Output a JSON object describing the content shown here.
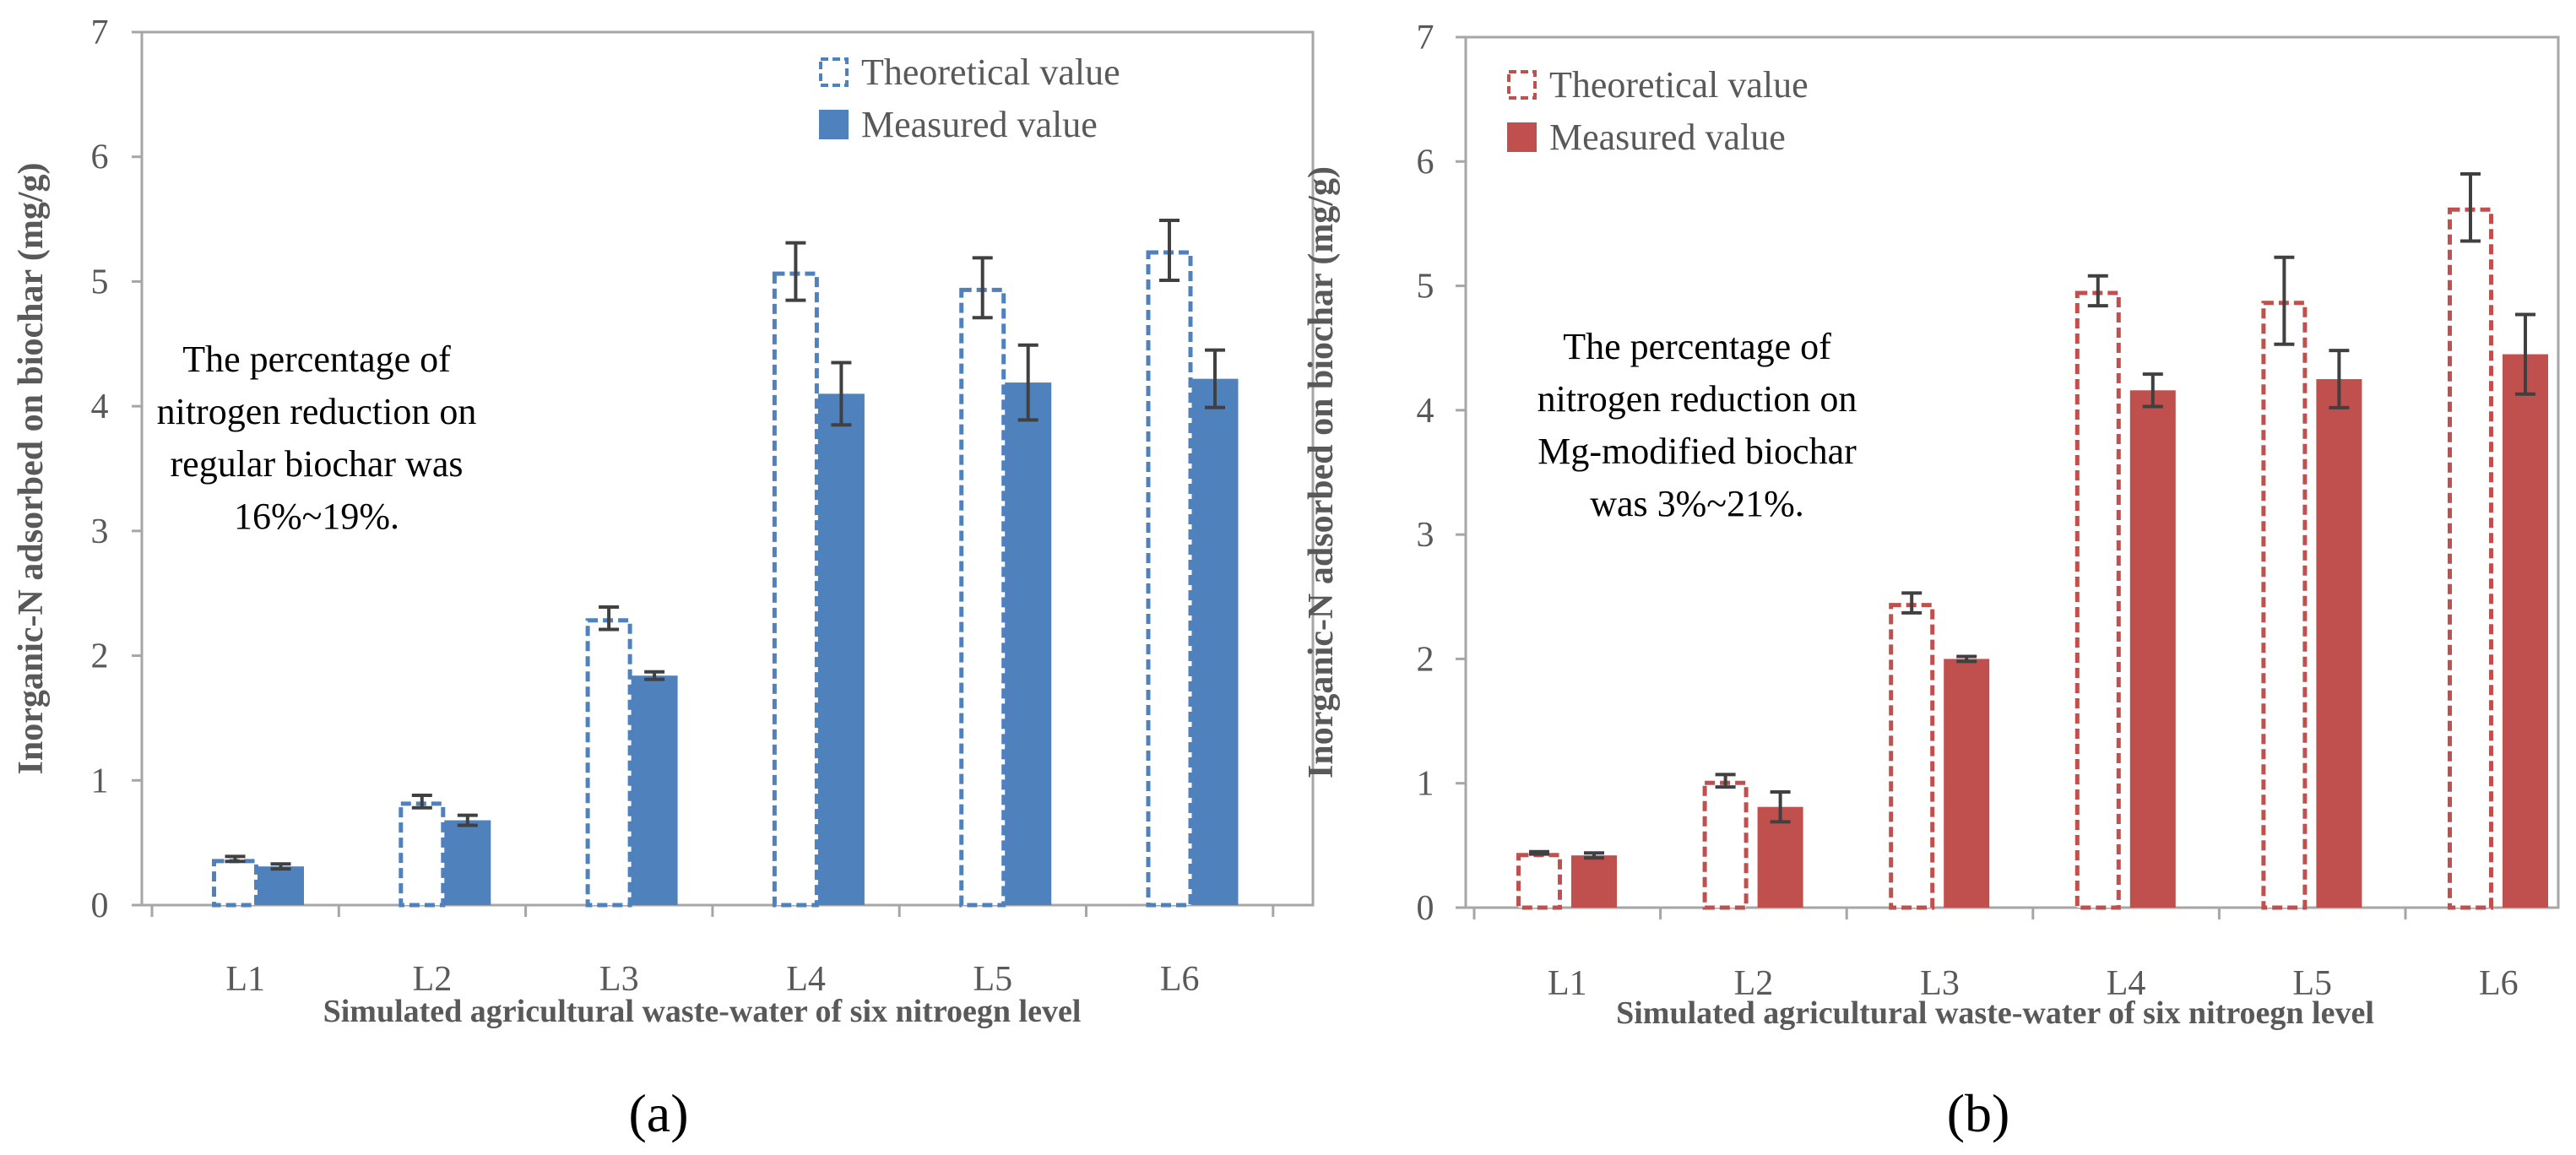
{
  "chart_data": [
    {
      "type": "bar",
      "panel_label": "(a)",
      "ylabel": "Inorganic-N adsorbed on biochar (mg/g)",
      "xlabel": "Simulated agricultural waste-water of six nitroegn level",
      "categories": [
        "L1",
        "L2",
        "L3",
        "L4",
        "L5",
        "L6"
      ],
      "ylim": [
        0,
        7
      ],
      "yticks": [
        "0",
        "1",
        "2",
        "3",
        "4",
        "5",
        "6",
        "7"
      ],
      "grid": false,
      "legend": "top-right",
      "color": "#4F81BD",
      "series": [
        {
          "name": "Theoretical value",
          "style": "dashed-outline",
          "values": [
            0.37,
            0.83,
            2.3,
            5.08,
            4.95,
            5.25
          ],
          "errors": [
            0.02,
            0.05,
            0.09,
            0.23,
            0.24,
            0.24
          ]
        },
        {
          "name": "Measured value",
          "style": "filled",
          "values": [
            0.31,
            0.68,
            1.84,
            4.1,
            4.19,
            4.22
          ],
          "errors": [
            0.02,
            0.04,
            0.03,
            0.25,
            0.3,
            0.23
          ]
        }
      ],
      "annotation": [
        "The percentage of",
        "nitrogen reduction on",
        "regular biochar was",
        "16%~19%."
      ]
    },
    {
      "type": "bar",
      "panel_label": "(b)",
      "ylabel": "Inorganic-N adsorbed on  biochar (mg/g)",
      "xlabel": "Simulated agricultural waste-water of six nitroegn level",
      "categories": [
        "L1",
        "L2",
        "L3",
        "L4",
        "L5",
        "L6"
      ],
      "ylim": [
        0,
        7
      ],
      "yticks": [
        "0",
        "1",
        "2",
        "3",
        "4",
        "5",
        "6",
        "7"
      ],
      "grid": false,
      "legend": "top-right",
      "color": "#C0504D",
      "series": [
        {
          "name": "Theoretical value",
          "style": "dashed-outline",
          "values": [
            0.44,
            1.02,
            2.45,
            4.96,
            4.88,
            5.63
          ],
          "errors": [
            0.01,
            0.05,
            0.08,
            0.12,
            0.35,
            0.27
          ]
        },
        {
          "name": "Measured value",
          "style": "filled",
          "values": [
            0.42,
            0.81,
            2.0,
            4.16,
            4.25,
            4.45
          ],
          "errors": [
            0.02,
            0.12,
            0.02,
            0.13,
            0.23,
            0.32
          ]
        }
      ],
      "annotation": [
        "The percentage of",
        "nitrogen reduction on",
        "Mg-modified biochar",
        "was 3%~21%."
      ]
    }
  ],
  "colors": {
    "axis": "#A6A6A6",
    "tick_text": "#595959",
    "title_text": "#595959",
    "error_bar": "#404040"
  }
}
